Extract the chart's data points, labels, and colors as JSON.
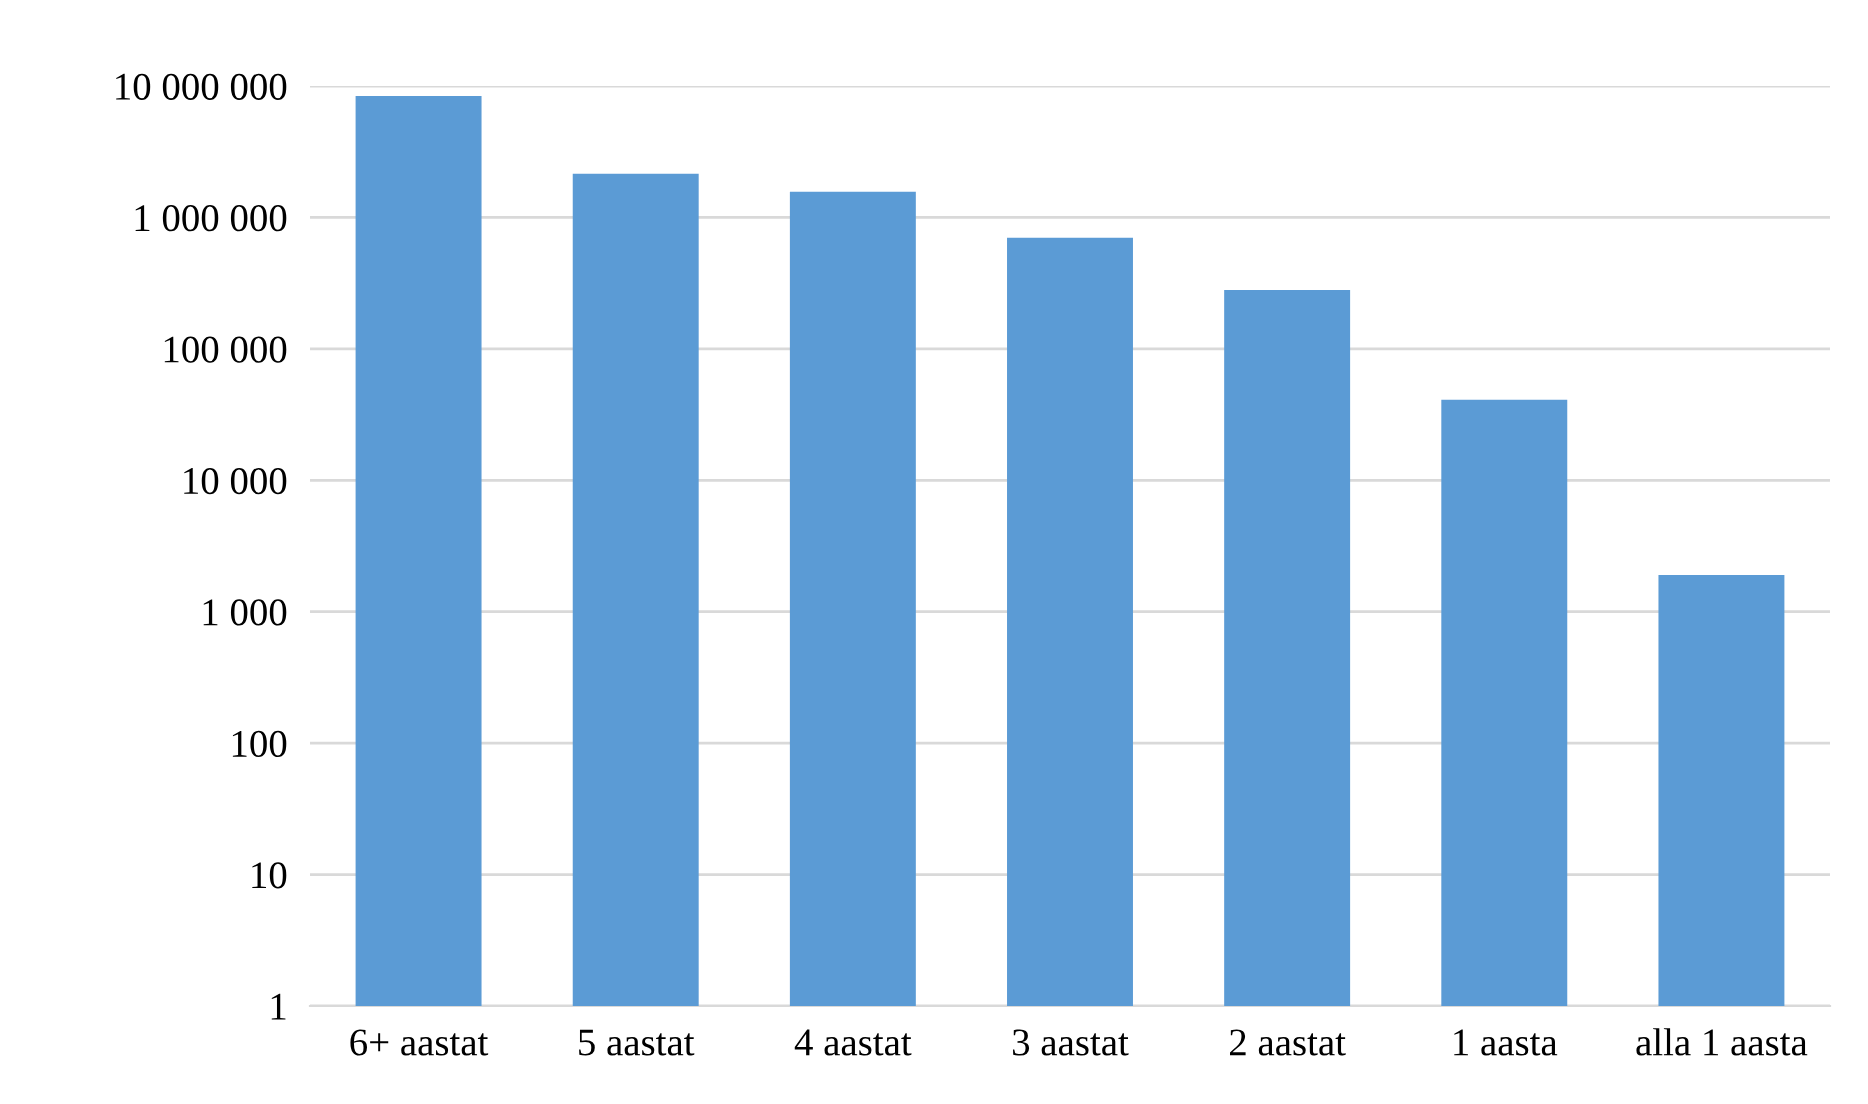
{
  "chart_data": {
    "type": "bar",
    "categories": [
      "6+ aastat",
      "5 aastat",
      "4 aastat",
      "3 aastat",
      "2 aastat",
      "1 aasta",
      "alla 1 aasta"
    ],
    "values": [
      8400000,
      2150000,
      1570000,
      700000,
      280000,
      41000,
      1900
    ],
    "color": "#5b9bd5",
    "log": true,
    "ylim": [
      1,
      10000000
    ],
    "yticks": [
      {
        "value": 1,
        "label": "1"
      },
      {
        "value": 10,
        "label": "10"
      },
      {
        "value": 100,
        "label": "100"
      },
      {
        "value": 1000,
        "label": "1 000"
      },
      {
        "value": 10000,
        "label": "10 000"
      },
      {
        "value": 100000,
        "label": "100 000"
      },
      {
        "value": 1000000,
        "label": "1 000 000"
      },
      {
        "value": 10000000,
        "label": "10 000 000"
      }
    ],
    "grid": "y",
    "legend": false
  }
}
